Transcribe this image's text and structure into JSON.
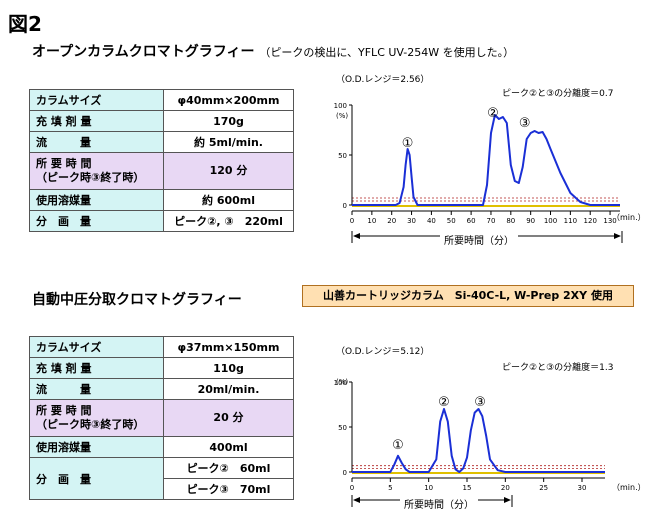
{
  "figure_label": "図2",
  "section1": {
    "title": "オープンカラムクロマトグラフィー",
    "note": "（ピークの検出に、YFLC UV-254W を使用した。）",
    "rows": [
      {
        "key": "カラムサイズ",
        "value": "φ40mm×200mm"
      },
      {
        "key": "充 填 剤 量",
        "value": "170g"
      },
      {
        "key": "流　　　量",
        "value": "約 5ml/min."
      },
      {
        "key": "所 要 時 間",
        "key2": "（ピーク時③終了時）",
        "value": "120 分"
      },
      {
        "key": "使用溶媒量",
        "value": "約 600ml"
      },
      {
        "key": "分　画　量",
        "value": "ピーク②, ③　220ml"
      }
    ]
  },
  "section2": {
    "title": "自動中圧分取クロマトグラフィー",
    "badge": "山善カートリッジカラム　Si-40C-L, W-Prep 2XY 使用",
    "rows": [
      {
        "key": "カラムサイズ",
        "value": "φ37mm×150mm"
      },
      {
        "key": "充 填 剤 量",
        "value": "110g"
      },
      {
        "key": "流　　　量",
        "value": "20ml/min."
      },
      {
        "key": "所 要 時 間",
        "key2": "（ピーク時③終了時）",
        "value": "20 分"
      },
      {
        "key": "使用溶媒量",
        "value": "400ml"
      },
      {
        "key": "分　画　量",
        "value": "ピーク②　60ml",
        "value2": "ピーク③　70ml"
      }
    ]
  },
  "colors": {
    "trace": "#1a2fd6",
    "table_key_bg": "#d4f4f4",
    "table_highlight_bg": "#e8d8f4",
    "badge_bg": "#ffe0b2",
    "baseline": "#e0c000"
  },
  "chart_data": [
    {
      "type": "line",
      "od_label": "（O.D.レンジ＝2.56）",
      "resolution_label": "ピーク②と③の分離度＝0.7",
      "y_unit": "(%)",
      "y_ticks": [
        "100",
        "50",
        "0"
      ],
      "ylim": [
        0,
        100
      ],
      "x_ticks": [
        "0",
        "10",
        "20",
        "30",
        "40",
        "50",
        "60",
        "70",
        "80",
        "90",
        "100",
        "110",
        "120",
        "130"
      ],
      "xlim": [
        0,
        135
      ],
      "x_unit": "（min.）",
      "xlabel": "所要時間（分）",
      "peak_labels": [
        {
          "text": "①",
          "x": 28,
          "y": 62
        },
        {
          "text": "②",
          "x": 71,
          "y": 92
        },
        {
          "text": "③",
          "x": 87,
          "y": 82
        }
      ],
      "series": [
        {
          "x": [
            0,
            22,
            24,
            26,
            27,
            28,
            29,
            30,
            31,
            33,
            40,
            66,
            68,
            70,
            72,
            74,
            76,
            78,
            80,
            82,
            84,
            86,
            88,
            90,
            92,
            94,
            96,
            98,
            100,
            105,
            110,
            115,
            120,
            135
          ],
          "y": [
            0,
            0,
            2,
            18,
            40,
            56,
            50,
            28,
            8,
            0,
            0,
            0,
            20,
            72,
            90,
            86,
            88,
            82,
            40,
            24,
            22,
            38,
            66,
            72,
            74,
            72,
            73,
            66,
            56,
            32,
            12,
            3,
            0,
            0
          ]
        }
      ]
    },
    {
      "type": "line",
      "od_label": "（O.D.レンジ＝5.12）",
      "resolution_label": "ピーク②と③の分離度＝1.3",
      "y_unit": "(%)",
      "y_ticks": [
        "100",
        "50",
        "0"
      ],
      "ylim": [
        0,
        100
      ],
      "x_ticks": [
        "0",
        "5",
        "10",
        "15",
        "20",
        "25",
        "30"
      ],
      "xlim": [
        0,
        33
      ],
      "x_unit": "（min.）",
      "xlabel": "所要時間（分）",
      "peak_labels": [
        {
          "text": "①",
          "x": 6,
          "y": 30
        },
        {
          "text": "②",
          "x": 12,
          "y": 78
        },
        {
          "text": "③",
          "x": 16.7,
          "y": 78
        }
      ],
      "series": [
        {
          "x": [
            0,
            5,
            5.5,
            6,
            6.5,
            7,
            7.5,
            10,
            11,
            11.5,
            12,
            12.5,
            13,
            13.5,
            14,
            14.5,
            15,
            15.5,
            16,
            16.5,
            17,
            17.5,
            18,
            19,
            20,
            33
          ],
          "y": [
            0,
            0,
            8,
            18,
            10,
            3,
            0,
            0,
            14,
            56,
            70,
            56,
            18,
            3,
            0,
            4,
            16,
            46,
            66,
            70,
            62,
            40,
            14,
            2,
            0,
            0
          ]
        }
      ]
    }
  ]
}
